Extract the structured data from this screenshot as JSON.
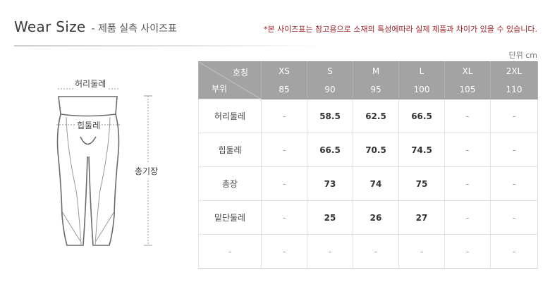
{
  "header": {
    "title": "Wear Size",
    "subtitle": "- 제품 실측 사이즈표",
    "notice": "*본 사이즈표는 참고용으로 소재의 특성에따라 실제 제품과 차이가 있을 수 있습니다.",
    "unit": "단위 cm"
  },
  "illustration": {
    "waist_label": "허리둘레",
    "hip_label": "힙둘레",
    "length_label": "총기장"
  },
  "table": {
    "corner_top": "호칭",
    "corner_bottom": "부위",
    "sizes": [
      "XS",
      "S",
      "M",
      "L",
      "XL",
      "2XL"
    ],
    "numbers": [
      "85",
      "90",
      "95",
      "100",
      "105",
      "110"
    ],
    "rows": [
      {
        "label": "허리둘레",
        "values": [
          "-",
          "58.5",
          "62.5",
          "66.5",
          "-",
          "-"
        ]
      },
      {
        "label": "힙둘레",
        "values": [
          "-",
          "66.5",
          "70.5",
          "74.5",
          "-",
          "-"
        ]
      },
      {
        "label": "총장",
        "values": [
          "-",
          "73",
          "74",
          "75",
          "-",
          "-"
        ]
      },
      {
        "label": "밑단둘레",
        "values": [
          "-",
          "25",
          "26",
          "27",
          "-",
          "-"
        ]
      },
      {
        "label": "-",
        "values": [
          "-",
          "-",
          "-",
          "-",
          "-",
          "-"
        ]
      }
    ]
  },
  "colors": {
    "notice": "#a0262b",
    "header_bg": "#a3a3a3"
  }
}
